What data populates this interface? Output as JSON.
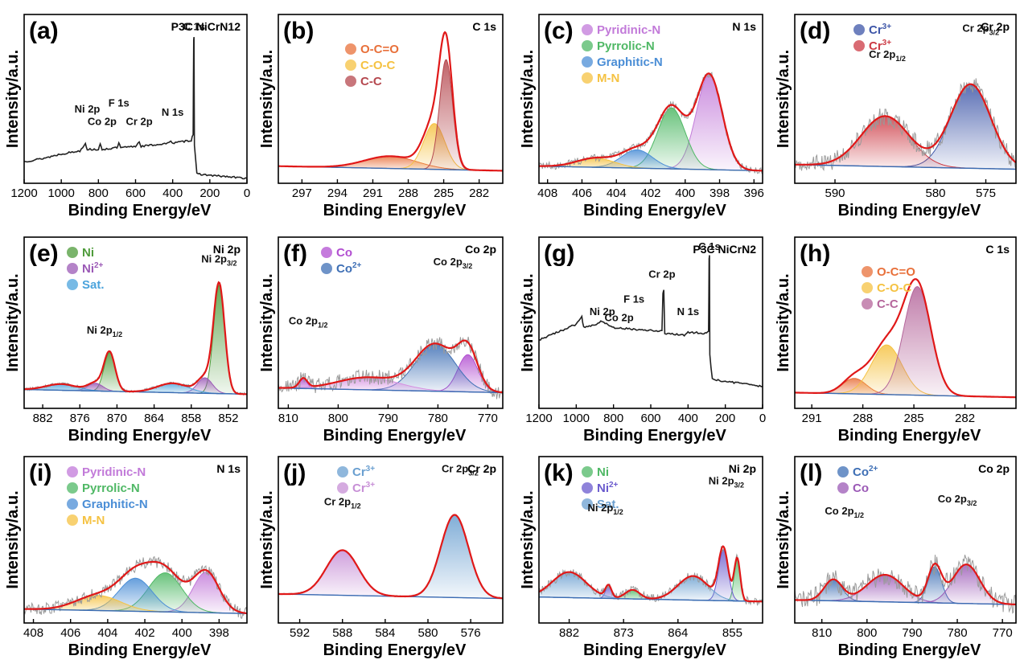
{
  "figure": {
    "ylabel": "Intensity/a.u.",
    "xlabel": "Binding Energy/eV"
  },
  "chart_data": [
    {
      "id": "a",
      "panel_label": "(a)",
      "type": "line",
      "title": "P3C NiCrN12",
      "xlim": [
        1200,
        0
      ],
      "xticks": [
        1200,
        1000,
        800,
        600,
        400,
        200,
        0
      ],
      "raw_color": "#222222",
      "raw": [
        [
          1200,
          0.1
        ],
        [
          1100,
          0.12
        ],
        [
          1000,
          0.15
        ],
        [
          950,
          0.16
        ],
        [
          900,
          0.17
        ],
        [
          870,
          0.22
        ],
        [
          860,
          0.18
        ],
        [
          800,
          0.18
        ],
        [
          790,
          0.21
        ],
        [
          780,
          0.18
        ],
        [
          700,
          0.19
        ],
        [
          690,
          0.22
        ],
        [
          680,
          0.19
        ],
        [
          600,
          0.2
        ],
        [
          580,
          0.23
        ],
        [
          570,
          0.2
        ],
        [
          420,
          0.22
        ],
        [
          410,
          0.24
        ],
        [
          400,
          0.22
        ],
        [
          300,
          0.24
        ],
        [
          290,
          0.28
        ],
        [
          287,
          0.9
        ],
        [
          285,
          0.92
        ],
        [
          283,
          0.2
        ],
        [
          270,
          0.02
        ],
        [
          200,
          0.01
        ],
        [
          100,
          0.0
        ],
        [
          0,
          -0.01
        ]
      ],
      "annotations": [
        {
          "text": "C 1s",
          "x": 285,
          "y": 0.96
        },
        {
          "text": "Ni 2p",
          "x": 860,
          "y": 0.42
        },
        {
          "text": "F 1s",
          "x": 690,
          "y": 0.46
        },
        {
          "text": "Co 2p",
          "x": 780,
          "y": 0.34
        },
        {
          "text": "Cr 2p",
          "x": 580,
          "y": 0.34
        },
        {
          "text": "N 1s",
          "x": 400,
          "y": 0.4
        }
      ]
    },
    {
      "id": "b",
      "panel_label": "(b)",
      "type": "area",
      "title": "C 1s",
      "xlim": [
        299,
        280
      ],
      "xticks": [
        297,
        294,
        291,
        288,
        285,
        282
      ],
      "peaks": [
        {
          "name": "O-C=O",
          "center": 289.5,
          "height": 0.08,
          "width": 2.2,
          "color": "#e8703a"
        },
        {
          "name": "C-O-C",
          "center": 285.8,
          "height": 0.3,
          "width": 0.9,
          "color": "#f5c242"
        },
        {
          "name": "C-C",
          "center": 284.8,
          "height": 0.72,
          "width": 0.55,
          "color": "#b5484f"
        }
      ],
      "background": 0.04,
      "envelope_color": "#e01818",
      "legend": [
        "O-C=O",
        "C-O-C",
        "C-C"
      ]
    },
    {
      "id": "c",
      "panel_label": "(c)",
      "type": "area",
      "title": "N 1s",
      "xlim": [
        408.5,
        395.5
      ],
      "xticks": [
        408,
        406,
        404,
        402,
        400,
        398,
        396
      ],
      "peaks": [
        {
          "name": "Pyridinic-N",
          "center": 398.6,
          "height": 0.62,
          "width": 0.75,
          "color": "#c27ad9"
        },
        {
          "name": "Pyrrolic-N",
          "center": 400.8,
          "height": 0.4,
          "width": 0.8,
          "color": "#4fb865"
        },
        {
          "name": "Graphitic-N",
          "center": 402.8,
          "height": 0.12,
          "width": 0.9,
          "color": "#4b8ed6"
        },
        {
          "name": "M-N",
          "center": 405.2,
          "height": 0.06,
          "width": 1.1,
          "color": "#f5c242"
        }
      ],
      "background": 0.04,
      "noise": 0.05,
      "envelope_color": "#e01818",
      "legend": [
        "Pyridinic-N",
        "Pyrrolic-N",
        "Graphitic-N",
        "M-N"
      ]
    },
    {
      "id": "d",
      "panel_label": "(d)",
      "type": "area",
      "title": "Cr 2p",
      "xlim": [
        594,
        572
      ],
      "xticks": [
        590,
        580,
        575
      ],
      "peaks": [
        {
          "name": "Cr3+",
          "center": 576.5,
          "height": 0.55,
          "width": 2.0,
          "color": "#3e56a8"
        },
        {
          "name": "Cr3+",
          "center": 585.0,
          "height": 0.33,
          "width": 2.4,
          "color": "#cc3a44"
        }
      ],
      "background": 0.05,
      "noise": 0.12,
      "envelope_color": "#e01818",
      "legend": [
        "Cr3+",
        "Cr3+"
      ],
      "annotations": [
        {
          "text": "Cr 2p",
          "sub": "1/2",
          "x": 584.8,
          "y": 0.78
        },
        {
          "text": "Cr 2p",
          "sub": "3/2",
          "x": 575.5,
          "y": 0.95
        }
      ]
    },
    {
      "id": "e",
      "panel_label": "(e)",
      "type": "area",
      "title": "Ni 2p",
      "xlim": [
        885,
        849
      ],
      "xticks": [
        882,
        876,
        870,
        864,
        858,
        852
      ],
      "peaks": [
        {
          "name": "Ni",
          "center": 853.5,
          "height": 0.7,
          "width": 0.9,
          "color": "#4e9b3a"
        },
        {
          "name": "Ni",
          "center": 871.2,
          "height": 0.25,
          "width": 0.9,
          "color": "#4e9b3a"
        },
        {
          "name": "Ni2+",
          "center": 855.8,
          "height": 0.1,
          "width": 1.2,
          "color": "#9b59b6"
        },
        {
          "name": "Ni2+",
          "center": 873.5,
          "height": 0.05,
          "width": 1.2,
          "color": "#9b59b6"
        },
        {
          "name": "Sat.",
          "center": 861.0,
          "height": 0.06,
          "width": 2.5,
          "color": "#4ba3dc"
        },
        {
          "name": "Sat.",
          "center": 879.0,
          "height": 0.04,
          "width": 2.5,
          "color": "#4ba3dc"
        }
      ],
      "background": 0.05,
      "noise": 0.02,
      "envelope_color": "#e01818",
      "legend": [
        "Ni",
        "Ni2+",
        "Sat."
      ],
      "annotations": [
        {
          "text": "Ni 2p",
          "sub": "1/2",
          "x": 872,
          "y": 0.44
        },
        {
          "text": "Ni 2p",
          "sub": "3/2",
          "x": 853.5,
          "y": 0.9
        }
      ]
    },
    {
      "id": "f",
      "panel_label": "(f)",
      "type": "area",
      "title": "Co 2p",
      "xlim": [
        812,
        767
      ],
      "xticks": [
        810,
        800,
        790,
        780,
        770
      ],
      "peaks": [
        {
          "name": "Co",
          "center": 774.0,
          "height": 0.24,
          "width": 2.0,
          "color": "#b24fd1"
        },
        {
          "name": "Co",
          "center": 807.0,
          "height": 0.06,
          "width": 0.8,
          "color": "#b24fd1"
        },
        {
          "name": "Co2+",
          "center": 780.5,
          "height": 0.3,
          "width": 4.0,
          "color": "#3e6fb5"
        },
        {
          "name": "Co2+",
          "center": 794.0,
          "height": 0.08,
          "width": 6.0,
          "color": "#d58ee0"
        }
      ],
      "background": 0.06,
      "noise": 0.1,
      "envelope_color": "#e01818",
      "legend": [
        "Co",
        "Co2+"
      ],
      "annotations": [
        {
          "text": "Co 2p",
          "sub": "1/2",
          "x": 806,
          "y": 0.5
        },
        {
          "text": "Co 2p",
          "sub": "3/2",
          "x": 777,
          "y": 0.88
        }
      ]
    },
    {
      "id": "g",
      "panel_label": "(g)",
      "type": "line",
      "title": "P3C NiCrN2",
      "xlim": [
        1200,
        0
      ],
      "xticks": [
        1200,
        1000,
        800,
        600,
        400,
        200,
        0
      ],
      "raw_color": "#222222",
      "raw": [
        [
          1200,
          0.4
        ],
        [
          1100,
          0.45
        ],
        [
          1000,
          0.5
        ],
        [
          970,
          0.55
        ],
        [
          960,
          0.48
        ],
        [
          900,
          0.5
        ],
        [
          860,
          0.52
        ],
        [
          800,
          0.48
        ],
        [
          700,
          0.47
        ],
        [
          600,
          0.46
        ],
        [
          540,
          0.46
        ],
        [
          535,
          0.7
        ],
        [
          530,
          0.72
        ],
        [
          525,
          0.44
        ],
        [
          420,
          0.43
        ],
        [
          400,
          0.45
        ],
        [
          300,
          0.44
        ],
        [
          290,
          0.46
        ],
        [
          287,
          0.92
        ],
        [
          285,
          0.94
        ],
        [
          283,
          0.3
        ],
        [
          270,
          0.15
        ],
        [
          200,
          0.13
        ],
        [
          100,
          0.12
        ],
        [
          0,
          0.1
        ]
      ],
      "annotations": [
        {
          "text": "C 1s",
          "x": 285,
          "y": 0.98
        },
        {
          "text": "Cr 2p",
          "x": 540,
          "y": 0.8
        },
        {
          "text": "F 1s",
          "x": 690,
          "y": 0.64
        },
        {
          "text": "Ni 2p",
          "x": 860,
          "y": 0.56
        },
        {
          "text": "Co 2p",
          "x": 770,
          "y": 0.52
        },
        {
          "text": "N 1s",
          "x": 400,
          "y": 0.56
        }
      ]
    },
    {
      "id": "h",
      "panel_label": "(h)",
      "type": "area",
      "title": "C 1s",
      "xlim": [
        292,
        279
      ],
      "xticks": [
        291,
        288,
        285,
        282
      ],
      "peaks": [
        {
          "name": "O-C=O",
          "center": 288.5,
          "height": 0.1,
          "width": 0.7,
          "color": "#e8703a"
        },
        {
          "name": "C-O-C",
          "center": 286.6,
          "height": 0.32,
          "width": 0.9,
          "color": "#f5c242"
        },
        {
          "name": "C-C",
          "center": 284.8,
          "height": 0.7,
          "width": 0.8,
          "color": "#b5669b"
        }
      ],
      "background": 0.03,
      "envelope_color": "#e01818",
      "legend": [
        "O-C=O",
        "C-O-C",
        "C-C"
      ]
    },
    {
      "id": "i",
      "panel_label": "(i)",
      "type": "area",
      "title": "N 1s",
      "xlim": [
        408.5,
        396.5
      ],
      "xticks": [
        408,
        406,
        404,
        402,
        400,
        398
      ],
      "peaks": [
        {
          "name": "Pyridinic-N",
          "center": 398.7,
          "height": 0.27,
          "width": 0.7,
          "color": "#c27ad9"
        },
        {
          "name": "Pyrrolic-N",
          "center": 400.9,
          "height": 0.26,
          "width": 0.9,
          "color": "#4fb865"
        },
        {
          "name": "Graphitic-N",
          "center": 402.5,
          "height": 0.22,
          "width": 0.9,
          "color": "#4b8ed6"
        },
        {
          "name": "M-N",
          "center": 404.5,
          "height": 0.1,
          "width": 1.2,
          "color": "#f5c242"
        }
      ],
      "background": 0.02,
      "noise": 0.08,
      "envelope_color": "#e01818",
      "legend": [
        "Pyridinic-N",
        "Pyrrolic-N",
        "Graphitic-N",
        "M-N"
      ]
    },
    {
      "id": "j",
      "panel_label": "(j)",
      "type": "area",
      "title": "Cr 2p",
      "xlim": [
        594,
        573
      ],
      "xticks": [
        592,
        588,
        584,
        580,
        576
      ],
      "peaks": [
        {
          "name": "Cr3+",
          "center": 577.5,
          "height": 0.55,
          "width": 1.3,
          "color": "#6a9fd0"
        },
        {
          "name": "Cr3+",
          "center": 588.0,
          "height": 0.3,
          "width": 1.5,
          "color": "#c78fd6"
        }
      ],
      "background": 0.12,
      "noise": 0.01,
      "envelope_color": "#e01818",
      "legend": [
        "Cr3+",
        "Cr3+"
      ],
      "annotations": [
        {
          "text": "Cr 2p",
          "sub": "1/2",
          "x": 588,
          "y": 0.74
        },
        {
          "text": "Cr 2p",
          "sub": "3/2",
          "x": 577,
          "y": 0.96
        }
      ]
    },
    {
      "id": "k",
      "panel_label": "(k)",
      "type": "area",
      "title": "Ni 2p",
      "xlim": [
        887,
        850
      ],
      "xticks": [
        882,
        873,
        864,
        855
      ],
      "peaks": [
        {
          "name": "Ni",
          "center": 854.2,
          "height": 0.28,
          "width": 0.5,
          "color": "#4fb865"
        },
        {
          "name": "Ni",
          "center": 871.5,
          "height": 0.06,
          "width": 1.2,
          "color": "#4fb865"
        },
        {
          "name": "Ni2+",
          "center": 856.5,
          "height": 0.34,
          "width": 0.8,
          "color": "#6a5acd"
        },
        {
          "name": "Ni2+",
          "center": 875.5,
          "height": 0.08,
          "width": 0.5,
          "color": "#6a5acd"
        },
        {
          "name": "Sat.",
          "center": 861.5,
          "height": 0.16,
          "width": 2.5,
          "color": "#6a9fd0"
        },
        {
          "name": "Sat.",
          "center": 882.0,
          "height": 0.17,
          "width": 2.8,
          "color": "#6a9fd0"
        }
      ],
      "background": 0.1,
      "noise": 0.06,
      "envelope_color": "#e01818",
      "legend": [
        "Ni",
        "Ni2+",
        "Sat."
      ],
      "annotations": [
        {
          "text": "Ni 2p",
          "sub": "1/2",
          "x": 876,
          "y": 0.7
        },
        {
          "text": "Ni 2p",
          "sub": "3/2",
          "x": 856,
          "y": 0.88
        }
      ]
    },
    {
      "id": "l",
      "panel_label": "(l)",
      "type": "area",
      "title": "Co 2p",
      "xlim": [
        816,
        767
      ],
      "xticks": [
        810,
        800,
        790,
        780,
        770
      ],
      "peaks": [
        {
          "name": "Co2+",
          "center": 807.5,
          "height": 0.14,
          "width": 2.0,
          "color": "#3e6fb5"
        },
        {
          "name": "Co2+",
          "center": 785.0,
          "height": 0.24,
          "width": 1.5,
          "color": "#3e6fb5"
        },
        {
          "name": "Co",
          "center": 796.0,
          "height": 0.18,
          "width": 4.0,
          "color": "#9b59b6"
        },
        {
          "name": "Co",
          "center": 778.0,
          "height": 0.26,
          "width": 3.0,
          "color": "#9b59b6"
        }
      ],
      "background": 0.08,
      "noise": 0.14,
      "envelope_color": "#e01818",
      "legend": [
        "Co2+",
        "Co"
      ],
      "annotations": [
        {
          "text": "Co 2p",
          "sub": "1/2",
          "x": 805,
          "y": 0.68
        },
        {
          "text": "Co 2p",
          "sub": "3/2",
          "x": 780,
          "y": 0.76
        }
      ]
    }
  ]
}
